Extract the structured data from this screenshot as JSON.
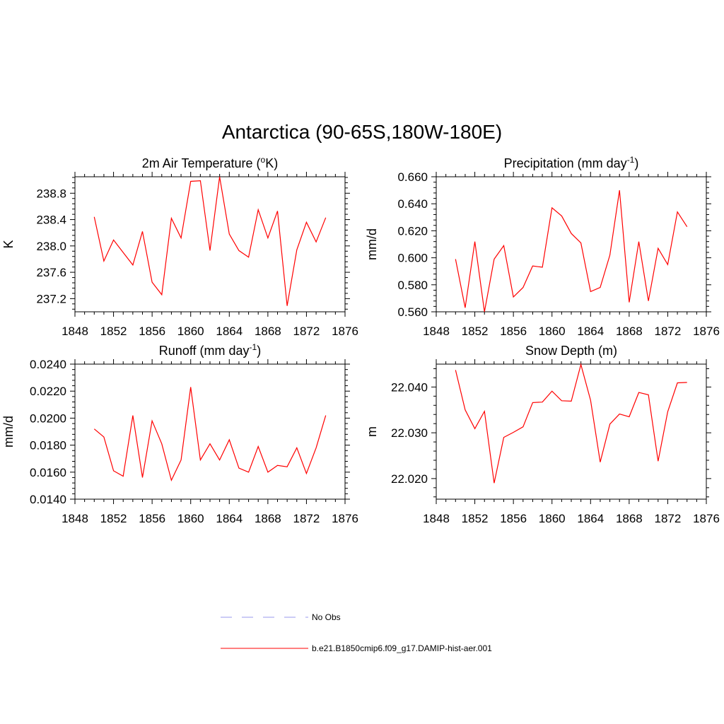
{
  "figure": {
    "title": "Antarctica (90-65S,180W-180E)"
  },
  "legend": [
    {
      "label": "No Obs",
      "color": "#9999ee",
      "style": "dashed"
    },
    {
      "label": "b.e21.B1850cmip6.f09_g17.DAMIP-hist-aer.001",
      "color": "#ff0000",
      "style": "solid"
    }
  ],
  "chart_data": [
    {
      "type": "line",
      "title": "2m Air Temperature (",
      "title_sup": "o",
      "title_after": "K)",
      "ylabel": "K",
      "xlim": [
        1848,
        1876
      ],
      "xticks": [
        "1848",
        "1852",
        "1856",
        "1860",
        "1864",
        "1868",
        "1872",
        "1876"
      ],
      "ylim": [
        237.0,
        239.05
      ],
      "yticks": [
        "237.2",
        "237.6",
        "238.0",
        "238.4",
        "238.8"
      ],
      "series": [
        {
          "color": "#ff0000",
          "x": [
            1850,
            1851,
            1852,
            1853,
            1854,
            1855,
            1856,
            1857,
            1858,
            1859,
            1860,
            1861,
            1862,
            1863,
            1864,
            1865,
            1866,
            1867,
            1868,
            1869,
            1870,
            1871,
            1872,
            1873,
            1874
          ],
          "values": [
            238.44,
            237.77,
            238.09,
            237.9,
            237.71,
            238.22,
            237.45,
            237.26,
            238.42,
            238.12,
            238.98,
            238.99,
            237.93,
            239.05,
            238.18,
            237.93,
            237.83,
            238.55,
            238.12,
            238.53,
            237.09,
            237.94,
            238.36,
            238.06,
            238.43
          ]
        }
      ]
    },
    {
      "type": "line",
      "title": "Precipitation (mm day",
      "title_sup": "-1",
      "title_after": ")",
      "ylabel": "mm/d",
      "xlim": [
        1848,
        1876
      ],
      "xticks": [
        "1848",
        "1852",
        "1856",
        "1860",
        "1864",
        "1868",
        "1872",
        "1876"
      ],
      "ylim": [
        0.56,
        0.66
      ],
      "yticks": [
        "0.560",
        "0.580",
        "0.600",
        "0.620",
        "0.640",
        "0.660"
      ],
      "series": [
        {
          "color": "#ff0000",
          "x": [
            1850,
            1851,
            1852,
            1853,
            1854,
            1855,
            1856,
            1857,
            1858,
            1859,
            1860,
            1861,
            1862,
            1863,
            1864,
            1865,
            1866,
            1867,
            1868,
            1869,
            1870,
            1871,
            1872,
            1873,
            1874
          ],
          "values": [
            0.599,
            0.563,
            0.612,
            0.56,
            0.599,
            0.609,
            0.571,
            0.578,
            0.594,
            0.593,
            0.637,
            0.631,
            0.618,
            0.611,
            0.575,
            0.578,
            0.602,
            0.65,
            0.567,
            0.612,
            0.568,
            0.607,
            0.595,
            0.634,
            0.623
          ]
        }
      ]
    },
    {
      "type": "line",
      "title": "Runoff (mm day",
      "title_sup": "-1",
      "title_after": ")",
      "ylabel": "mm/d",
      "xlim": [
        1848,
        1876
      ],
      "xticks": [
        "1848",
        "1852",
        "1856",
        "1860",
        "1864",
        "1868",
        "1872",
        "1876"
      ],
      "ylim": [
        0.014,
        0.024
      ],
      "yticks": [
        "0.0140",
        "0.0160",
        "0.0180",
        "0.0200",
        "0.0220",
        "0.0240"
      ],
      "series": [
        {
          "color": "#ff0000",
          "x": [
            1850,
            1851,
            1852,
            1853,
            1854,
            1855,
            1856,
            1857,
            1858,
            1859,
            1860,
            1861,
            1862,
            1863,
            1864,
            1865,
            1866,
            1867,
            1868,
            1869,
            1870,
            1871,
            1872,
            1873,
            1874
          ],
          "values": [
            0.0192,
            0.0186,
            0.0161,
            0.0157,
            0.0202,
            0.0156,
            0.0198,
            0.0181,
            0.0154,
            0.0169,
            0.0223,
            0.0169,
            0.0181,
            0.0169,
            0.0184,
            0.0163,
            0.016,
            0.0179,
            0.016,
            0.0165,
            0.0164,
            0.0178,
            0.0159,
            0.0178,
            0.0202
          ]
        }
      ]
    },
    {
      "type": "line",
      "title": "Snow Depth (m)",
      "title_sup": "",
      "title_after": "",
      "ylabel": "m",
      "xlim": [
        1848,
        1876
      ],
      "xticks": [
        "1848",
        "1852",
        "1856",
        "1860",
        "1864",
        "1868",
        "1872",
        "1876"
      ],
      "ylim": [
        22.0155,
        22.045
      ],
      "yticks": [
        "22.020",
        "22.030",
        "22.040"
      ],
      "series": [
        {
          "color": "#ff0000",
          "x": [
            1850,
            1851,
            1852,
            1853,
            1854,
            1855,
            1856,
            1857,
            1858,
            1859,
            1860,
            1861,
            1862,
            1863,
            1864,
            1865,
            1866,
            1867,
            1868,
            1869,
            1870,
            1871,
            1872,
            1873,
            1874
          ],
          "values": [
            22.0437,
            22.035,
            22.0309,
            22.0347,
            22.019,
            22.029,
            22.0301,
            22.0313,
            22.0366,
            22.0367,
            22.0391,
            22.037,
            22.0369,
            22.0449,
            22.0371,
            22.0236,
            22.0319,
            22.0341,
            22.0335,
            22.0388,
            22.0383,
            22.0238,
            22.0346,
            22.0409,
            22.041
          ]
        }
      ]
    }
  ]
}
